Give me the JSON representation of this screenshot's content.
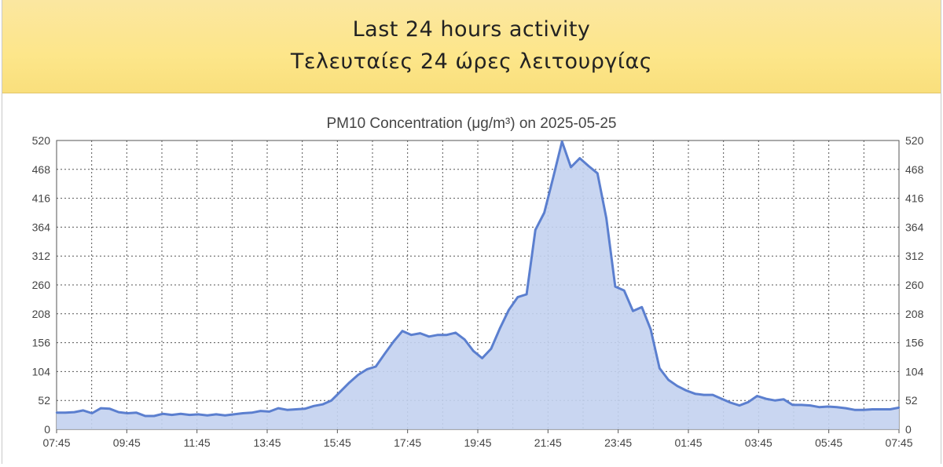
{
  "header": {
    "title_en": "Last 24 hours activity",
    "title_gr": "Τελευταίες 24 ώρες λειτουργίας"
  },
  "colors": {
    "line": "#5b7fcf",
    "fill": "#c3d2f0",
    "grid": "#555555",
    "text": "#444444"
  },
  "chart_data": {
    "type": "area",
    "title": "PM10 Concentration (μg/m³) on 2025-05-25",
    "xlabel": "",
    "ylabel": "",
    "ylim": [
      0,
      520
    ],
    "yticks": [
      0,
      52,
      104,
      156,
      208,
      260,
      312,
      364,
      416,
      468,
      520
    ],
    "xticks": [
      "07:45",
      "09:45",
      "11:45",
      "13:45",
      "15:45",
      "17:45",
      "19:45",
      "21:45",
      "23:45",
      "01:45",
      "03:45",
      "05:45",
      "07:45"
    ],
    "grid": true,
    "series": [
      {
        "values": [
          30,
          30,
          31,
          34,
          29,
          38,
          37,
          31,
          29,
          30,
          24,
          24,
          28,
          26,
          28,
          26,
          27,
          25,
          27,
          25,
          27,
          29,
          30,
          33,
          32,
          38,
          35,
          36,
          37,
          42,
          45,
          52,
          68,
          84,
          98,
          108,
          113,
          136,
          158,
          177,
          170,
          173,
          167,
          170,
          170,
          174,
          162,
          141,
          128,
          145,
          182,
          215,
          238,
          243,
          359,
          390,
          453,
          518,
          472,
          488,
          474,
          461,
          380,
          257,
          250,
          213,
          220,
          180,
          110,
          89,
          78,
          70,
          64,
          62,
          62,
          55,
          48,
          43,
          49,
          60,
          55,
          52,
          54,
          44,
          44,
          43,
          40,
          41,
          40,
          38,
          35,
          35,
          36,
          36,
          36,
          39
        ]
      }
    ]
  }
}
